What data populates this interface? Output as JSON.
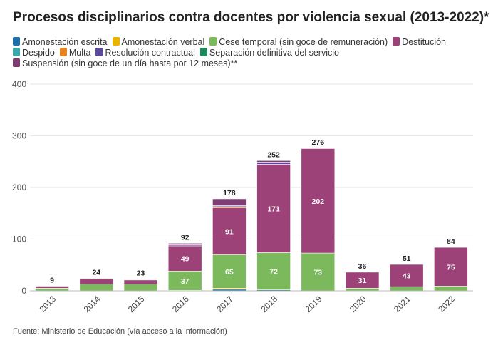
{
  "chart_data": {
    "type": "bar",
    "stacked": true,
    "title": "Procesos disciplinarios contra docentes por violencia sexual (2013-2022)*",
    "xlabel": "",
    "ylabel": "",
    "ylim": [
      0,
      400
    ],
    "yticks": [
      0,
      100,
      200,
      300,
      400
    ],
    "grid": true,
    "legend_position": "top",
    "categories": [
      "2013",
      "2014",
      "2015",
      "2016",
      "2017",
      "2018",
      "2019",
      "2020",
      "2021",
      "2022"
    ],
    "totals": [
      9,
      24,
      23,
      92,
      178,
      252,
      276,
      36,
      51,
      84
    ],
    "series": [
      {
        "name": "Amonestación escrita",
        "color": "#1f6fa8",
        "values": [
          0,
          0,
          0,
          1,
          3,
          2,
          0,
          0,
          0,
          0
        ]
      },
      {
        "name": "Amonestación verbal",
        "color": "#e8b400",
        "values": [
          0,
          0,
          0,
          0,
          2,
          0,
          0,
          0,
          0,
          0
        ]
      },
      {
        "name": "Cese temporal (sin goce de remuneración)",
        "color": "#7cb95c",
        "values": [
          5,
          13,
          13,
          37,
          65,
          72,
          73,
          5,
          8,
          9
        ]
      },
      {
        "name": "Destitución",
        "color": "#9c4279",
        "values": [
          4,
          10,
          8,
          49,
          91,
          171,
          202,
          31,
          43,
          75
        ]
      },
      {
        "name": "Despido",
        "color": "#3aa9a9",
        "values": [
          0,
          0,
          1,
          0,
          0,
          0,
          0,
          0,
          0,
          0
        ]
      },
      {
        "name": "Multa",
        "color": "#e8821c",
        "values": [
          0,
          0,
          0,
          0,
          2,
          0,
          0,
          0,
          0,
          0
        ]
      },
      {
        "name": "Resolución contractual",
        "color": "#5b4a9b",
        "values": [
          0,
          0,
          1,
          2,
          2,
          4,
          0,
          0,
          0,
          0
        ]
      },
      {
        "name": "Separación definitiva del servicio",
        "color": "#1a8a5a",
        "values": [
          0,
          0,
          0,
          0,
          0,
          0,
          0,
          0,
          0,
          0
        ]
      },
      {
        "name": "Suspensión (sin goce de un día hasta por 12 meses)**",
        "color": "#7d3e73",
        "values": [
          0,
          1,
          0,
          3,
          13,
          3,
          1,
          0,
          0,
          0
        ]
      }
    ],
    "data_labels": [
      {
        "year": "2016",
        "series": "Cese temporal (sin goce de remuneración)",
        "value": 37
      },
      {
        "year": "2016",
        "series": "Destitución",
        "value": 49
      },
      {
        "year": "2017",
        "series": "Cese temporal (sin goce de remuneración)",
        "value": 65
      },
      {
        "year": "2017",
        "series": "Destitución",
        "value": 91
      },
      {
        "year": "2018",
        "series": "Cese temporal (sin goce de remuneración)",
        "value": 72
      },
      {
        "year": "2018",
        "series": "Destitución",
        "value": 171
      },
      {
        "year": "2019",
        "series": "Cese temporal (sin goce de remuneración)",
        "value": 73
      },
      {
        "year": "2019",
        "series": "Destitución",
        "value": 202
      },
      {
        "year": "2020",
        "series": "Destitución",
        "value": 31
      },
      {
        "year": "2021",
        "series": "Destitución",
        "value": 43
      },
      {
        "year": "2022",
        "series": "Destitución",
        "value": 75
      }
    ]
  },
  "footer": {
    "source": "Fuente: Ministerio de Educación (vía acceso a la información)"
  }
}
